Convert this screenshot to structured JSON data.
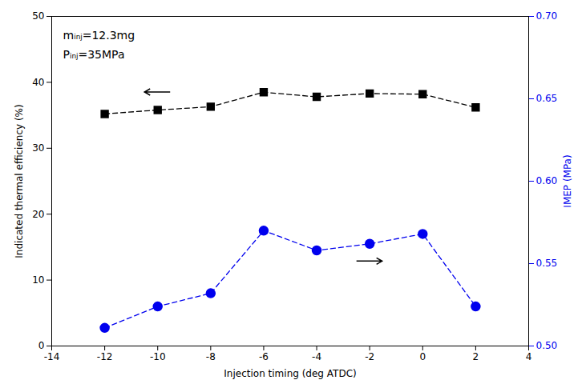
{
  "chart_data": {
    "type": "line",
    "xlabel": "Injection timing (deg ATDC)",
    "ylabel": "Indicated thermal efficiency (%)",
    "y2label": "IMEP (MPa)",
    "annotations": [
      "mᵢₙⱼ=12.3mg",
      "Pᵢₙⱼ=35MPa"
    ],
    "x": [
      -12,
      -10,
      -8,
      -6,
      -4,
      -2,
      0,
      2
    ],
    "series": [
      {
        "values": [
          35.2,
          35.8,
          36.3,
          38.5,
          37.8,
          38.3,
          38.2,
          36.2
        ],
        "color": "#000000",
        "marker": "square",
        "line_style": "dashed",
        "axis": "y"
      },
      {
        "values": [
          0.511,
          0.524,
          0.532,
          0.57,
          0.558,
          0.562,
          0.568,
          0.524
        ],
        "color": "#0000EE",
        "marker": "circle",
        "line_style": "dashed",
        "axis": "y2"
      }
    ],
    "xlim": [
      -14,
      4
    ],
    "xticks": [
      -14,
      -12,
      -10,
      -8,
      -6,
      -4,
      -2,
      0,
      2,
      4
    ],
    "ylim": [
      0,
      50
    ],
    "yticks": [
      0,
      10,
      20,
      30,
      40,
      50
    ],
    "y2lim": [
      0.5,
      0.7
    ],
    "y2ticks": [
      {
        "value": 0.5,
        "label": "0.50"
      },
      {
        "value": 0.55,
        "label": "0.55"
      },
      {
        "value": 0.6,
        "label": "0.60"
      },
      {
        "value": 0.65,
        "label": "0.65"
      },
      {
        "value": 0.7,
        "label": "0.70"
      }
    ]
  }
}
